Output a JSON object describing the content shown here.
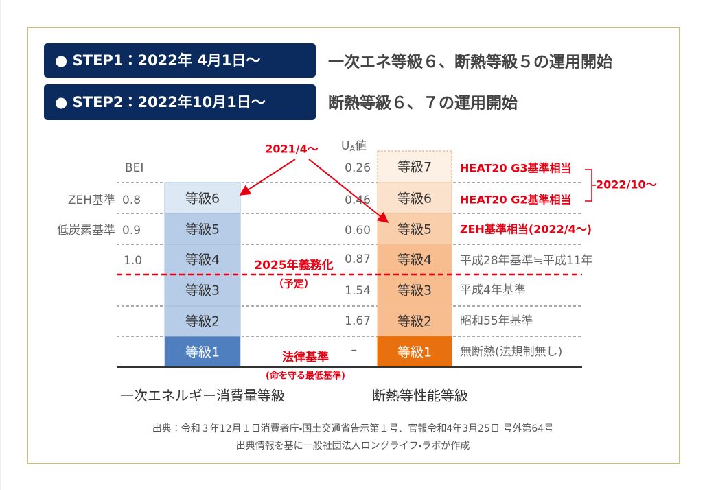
{
  "steps": [
    {
      "label": "● STEP1：2022年 4月1日〜",
      "description": "一次エネ等級６、断熱等級５の運用開始"
    },
    {
      "label": "● STEP2：2022年10月1日〜",
      "description": "断熱等級６、７の運用開始"
    }
  ],
  "bei_column": {
    "header": "BEI",
    "rows": [
      {
        "label": "ZEH基準",
        "value": "0.8"
      },
      {
        "label": "低炭素基準",
        "value": "0.9"
      },
      {
        "value": "1.0"
      }
    ]
  },
  "energy_grades": [
    "等級6",
    "等級5",
    "等級4",
    "等級3",
    "等級2",
    "等級1"
  ],
  "ua_header": {
    "symbol": "U",
    "subscript": "A",
    "suffix": "値"
  },
  "ua_values": [
    "0.26",
    "0.46",
    "0.60",
    "0.87",
    "1.54",
    "1.67",
    "–"
  ],
  "insulation_grades": [
    "等級7",
    "等級6",
    "等級5",
    "等級4",
    "等級3",
    "等級2",
    "等級1"
  ],
  "insulation_notes": [
    "HEAT20 G3基準相当",
    "HEAT20 G2基準相当",
    "ZEH基準相当(2022/4〜)",
    "平成28年基準≒平成11年",
    "平成4年基準",
    "昭和55年基準",
    "無断熱(法規制無し)"
  ],
  "annotations": {
    "arrow_label": "2021/4〜",
    "bracket_label": "2022/10〜",
    "mandatory": "2025年義務化",
    "mandatory_note": "（予定）",
    "legal": "法律基準",
    "legal_note": "(命を守る最低基準)"
  },
  "axis_labels": [
    "一次エネルギー消費量等級",
    "断熱等性能等級"
  ],
  "source": [
    "出典：令和３年12月１日消費者庁・国土交通省告示第１号、官報令和4年3月25日 号外第64号",
    "出典情報を基に一般社団法人ロングライフ・ラボが作成"
  ]
}
